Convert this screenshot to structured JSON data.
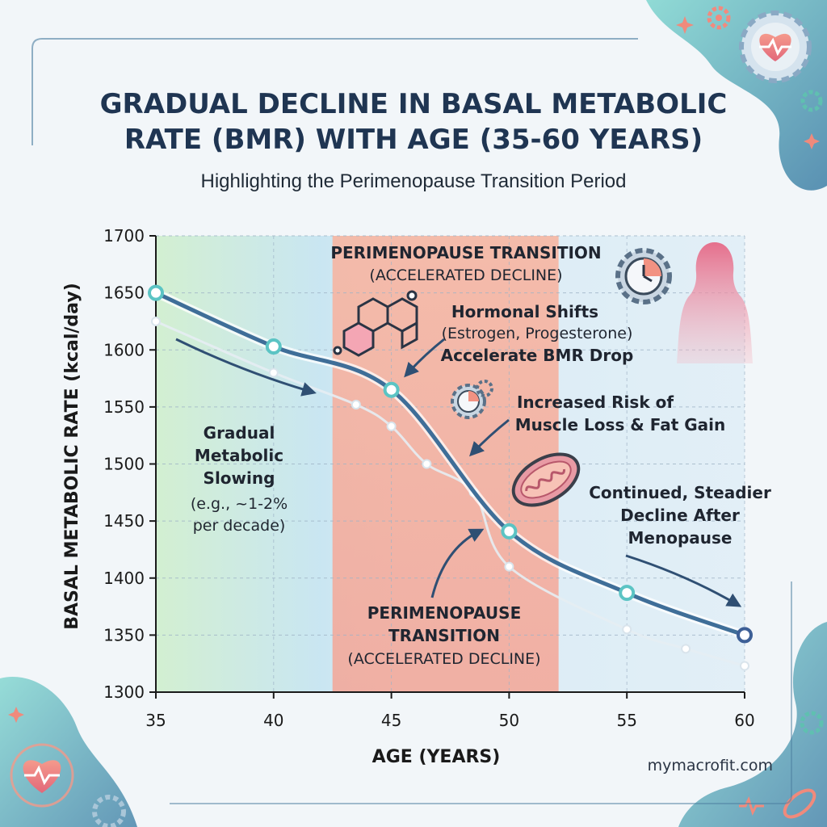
{
  "title": {
    "line1": "GRADUAL DECLINE IN BASAL METABOLIC",
    "line2": "RATE (BMR) WITH AGE (35-60 YEARS)"
  },
  "subtitle": "Highlighting the Perimenopause Transition Period",
  "footer": {
    "website": "mymacrofit.com"
  },
  "annotations": {
    "band_top_line1": "PERIMENOPAUSE TRANSITION",
    "band_top_line2": "(ACCELERATED DECLINE)",
    "hormonal_line1": "Hormonal Shifts",
    "hormonal_line2": "(Estrogen, Progesterone)",
    "hormonal_line3": "Accelerate BMR Drop",
    "muscle_line1": "Increased Risk of",
    "muscle_line2": "Muscle Loss & Fat Gain",
    "gradual_line1": "Gradual",
    "gradual_line2": "Metabolic",
    "gradual_line3": "Slowing",
    "gradual_line4": "(e.g., ~1-2%",
    "gradual_line5": "per decade)",
    "continued_line1": "Continued, Steadier",
    "continued_line2": "Decline After",
    "continued_line3": "Menopause",
    "band_bottom_line1": "PERIMENOPAUSE",
    "band_bottom_line2": "TRANSITION",
    "band_bottom_line3": "(ACCELERATED DECLINE)"
  },
  "icons": [
    "heart-gear-icon",
    "gear-icon",
    "heart-icon",
    "clock-gear-icon",
    "woman-silhouette-icon",
    "hormone-molecule-icon",
    "mitochondria-icon",
    "sparkle-icon"
  ],
  "colors": {
    "title": "#1f3552",
    "main_line": "#3f6e98",
    "secondary_line": "#e6edf3",
    "band": "#f6a596",
    "marker": "#5bc4c4",
    "end_marker": "#3d5f96"
  },
  "chart_data": {
    "type": "line",
    "xlabel": "AGE (YEARS)",
    "ylabel": "BASAL METABOLIC RATE (kcal/day)",
    "xlim": [
      35,
      60
    ],
    "ylim": [
      1300,
      1700
    ],
    "x_ticks": [
      35,
      40,
      45,
      50,
      55,
      60
    ],
    "y_ticks": [
      1300,
      1350,
      1400,
      1450,
      1500,
      1550,
      1600,
      1650,
      1700
    ],
    "x_tick_labels": [
      "35",
      "40",
      "45",
      "50",
      "55",
      "60"
    ],
    "y_tick_labels": [
      "1300",
      "1350",
      "1400",
      "1450",
      "1500",
      "1550",
      "1600",
      "1650",
      "1700"
    ],
    "grid": true,
    "highlight_band": {
      "x_start": 42.5,
      "x_end": 52.1
    },
    "series": [
      {
        "x": [
          35,
          40,
          45,
          50,
          55,
          60
        ],
        "values": [
          1650,
          1603,
          1565,
          1441,
          1387,
          1350
        ]
      },
      {
        "x": [
          35,
          40,
          43.5,
          45,
          46.5,
          48.5,
          50,
          55,
          57.5,
          60
        ],
        "values": [
          1625,
          1580,
          1552,
          1533,
          1500,
          1475,
          1410,
          1355,
          1338,
          1323
        ]
      }
    ]
  }
}
